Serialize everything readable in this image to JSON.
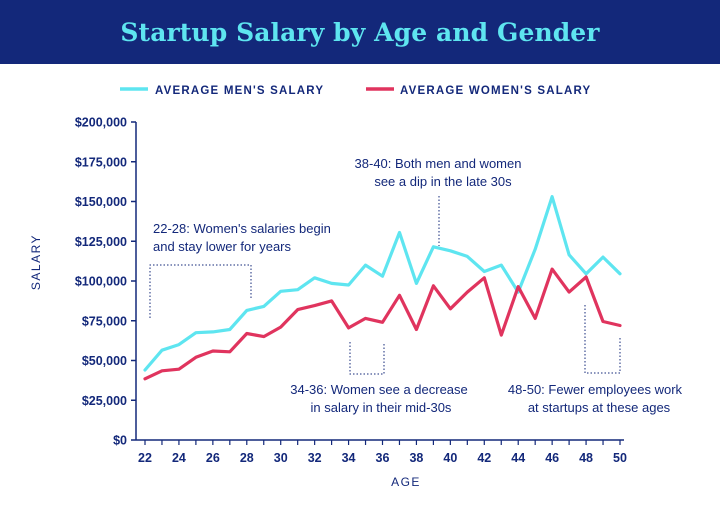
{
  "header": {
    "title": "Startup Salary by Age and Gender"
  },
  "colors": {
    "banner": "#13287a",
    "title": "#5ee5f0",
    "men": "#5ee5f0",
    "women": "#e0345e",
    "text": "#13287a"
  },
  "chart_data": {
    "type": "line",
    "title": "Startup Salary by Age and Gender",
    "xlabel": "AGE",
    "ylabel": "SALARY",
    "x": [
      22,
      23,
      24,
      25,
      26,
      27,
      28,
      29,
      30,
      31,
      32,
      33,
      34,
      35,
      36,
      37,
      38,
      39,
      40,
      41,
      42,
      43,
      44,
      45,
      46,
      47,
      48,
      49,
      50
    ],
    "xlim": [
      21.5,
      50
    ],
    "ylim": [
      0,
      200000
    ],
    "x_ticks": [
      "22",
      "24",
      "26",
      "28",
      "30",
      "32",
      "34",
      "36",
      "38",
      "40",
      "42",
      "44",
      "46",
      "48",
      "50"
    ],
    "y_ticks": [
      "$0",
      "$25,000",
      "$50,000",
      "$75,000",
      "$100,000",
      "$125,000",
      "$150,000",
      "$175,000",
      "$200,000"
    ],
    "legend_position": "top",
    "series": [
      {
        "name": "AVERAGE MEN'S SALARY",
        "values": [
          44000,
          56500,
          60000,
          67500,
          68000,
          69500,
          81500,
          84000,
          93500,
          94500,
          102000,
          98500,
          97500,
          110000,
          103000,
          130500,
          98500,
          121500,
          119000,
          115500,
          106000,
          110000,
          93000,
          120000,
          153000,
          116500,
          104500,
          115000,
          104500
        ]
      },
      {
        "name": "AVERAGE WOMEN'S SALARY",
        "values": [
          38500,
          43500,
          44500,
          52000,
          56000,
          55500,
          67000,
          65000,
          71000,
          82000,
          84500,
          87500,
          70500,
          76500,
          74000,
          91000,
          69500,
          97000,
          82500,
          93000,
          102000,
          66000,
          96500,
          76500,
          107500,
          93000,
          102500,
          74500,
          72000
        ]
      }
    ],
    "annotations": [
      {
        "lines": [
          "22-28: Women's salaries begin",
          "and stay lower for years"
        ]
      },
      {
        "lines": [
          "38-40: Both men and women",
          "see a dip in the late 30s"
        ]
      },
      {
        "lines": [
          "34-36: Women see a decrease",
          "in salary in their mid-30s"
        ]
      },
      {
        "lines": [
          "48-50: Fewer employees work",
          "at startups at these ages"
        ]
      }
    ]
  }
}
